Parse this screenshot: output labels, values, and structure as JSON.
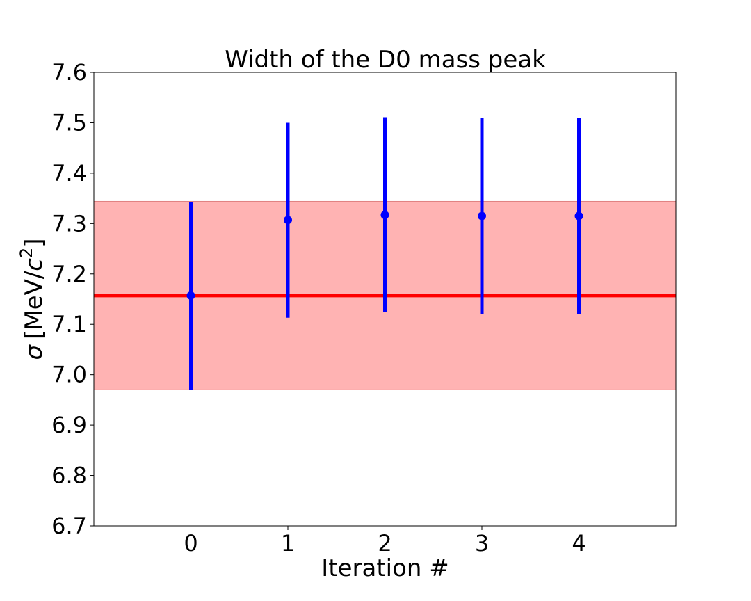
{
  "chart_data": {
    "type": "scatter",
    "title": "Width of the D0 mass peak",
    "xlabel": "Iteration #",
    "ylabel_symbol": "σ",
    "ylabel_unit_prefix": "[MeV/",
    "ylabel_unit_var": "c",
    "ylabel_unit_exp": "2",
    "ylabel_unit_suffix": "]",
    "xlim": [
      -1,
      5
    ],
    "ylim": [
      6.7,
      7.6
    ],
    "xticks": [
      0,
      1,
      2,
      3,
      4
    ],
    "xtick_labels": [
      "0",
      "1",
      "2",
      "3",
      "4"
    ],
    "yticks": [
      6.7,
      6.8,
      6.9,
      7.0,
      7.1,
      7.2,
      7.3,
      7.4,
      7.5,
      7.6
    ],
    "ytick_labels": [
      "6.7",
      "6.8",
      "6.9",
      "7.0",
      "7.1",
      "7.2",
      "7.3",
      "7.4",
      "7.5",
      "7.6"
    ],
    "grid": false,
    "points": [
      {
        "x": 0,
        "y": 7.157,
        "ylow": 6.97,
        "yhigh": 7.343
      },
      {
        "x": 1,
        "y": 7.307,
        "ylow": 7.113,
        "yhigh": 7.5
      },
      {
        "x": 2,
        "y": 7.317,
        "ylow": 7.124,
        "yhigh": 7.511
      },
      {
        "x": 3,
        "y": 7.315,
        "ylow": 7.121,
        "yhigh": 7.509
      },
      {
        "x": 4,
        "y": 7.315,
        "ylow": 7.121,
        "yhigh": 7.509
      }
    ],
    "reference": {
      "value": 7.157,
      "band_low": 6.97,
      "band_high": 7.344
    },
    "colors": {
      "points": "#0000ff",
      "reference_line": "#ff0000",
      "band": "#ffb3b3",
      "band_edge": "#e08080"
    }
  }
}
